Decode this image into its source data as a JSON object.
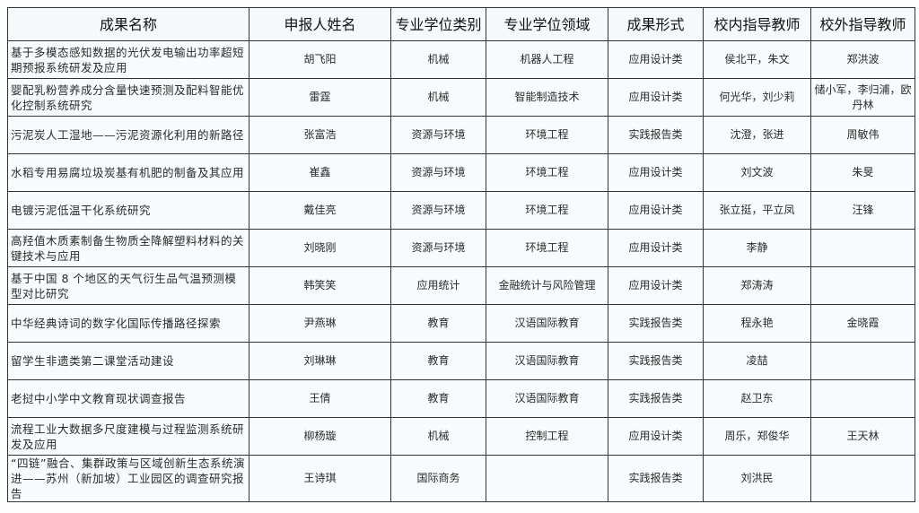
{
  "headers": [
    "成果名称",
    "申报人姓名",
    "专业学位类别",
    "专业学位领域",
    "成果形式",
    "校内指导教师",
    "校外指导教师"
  ],
  "rows": [
    [
      "基于多模态感知数据的光伏发电输出功率超短期预报系统研发及应用",
      "胡飞阳",
      "机械",
      "机器人工程",
      "应用设计类",
      "侯北平，朱文",
      "郑洪波"
    ],
    [
      "婴配乳粉营养成分含量快速预测及配料智能优化控制系统研究",
      "雷霆",
      "机械",
      "智能制造技术",
      "应用设计类",
      "何光华，刘少莉",
      "储小军，李归浦，欧丹林"
    ],
    [
      "污泥炭人工湿地——污泥资源化利用的新路径",
      "张富浩",
      "资源与环境",
      "环境工程",
      "实践报告类",
      "沈澄，张进",
      "周敏伟"
    ],
    [
      "水稻专用易腐垃圾炭基有机肥的制备及其应用",
      "崔鑫",
      "资源与环境",
      "环境工程",
      "应用设计类",
      "刘文波",
      "朱旻"
    ],
    [
      "电镀污泥低温干化系统研究",
      "戴佳亮",
      "资源与环境",
      "环境工程",
      "应用设计类",
      "张立挺，平立凤",
      "汪锋"
    ],
    [
      "高羟值木质素制备生物质全降解塑料材料的关键技术与应用",
      "刘晓刚",
      "资源与环境",
      "环境工程",
      "应用设计类",
      "李静",
      ""
    ],
    [
      "基于中国 8 个地区的天气衍生品气温预测模型对比研究",
      "韩笑笑",
      "应用统计",
      "金融统计与风险管理",
      "应用设计类",
      "郑涛涛",
      ""
    ],
    [
      "中华经典诗词的数字化国际传播路径探索",
      "尹燕琳",
      "教育",
      "汉语国际教育",
      "实践报告类",
      "程永艳",
      "金晓霞"
    ],
    [
      "留学生非遗类第二课堂活动建设",
      "刘琳琳",
      "教育",
      "汉语国际教育",
      "实践报告类",
      "凌喆",
      ""
    ],
    [
      "老挝中小学中文教育现状调查报告",
      "王倩",
      "教育",
      "汉语国际教育",
      "实践报告类",
      "赵卫东",
      ""
    ],
    [
      "流程工业大数据多尺度建模与过程监测系统研发及应用",
      "柳杨璇",
      "机械",
      "控制工程",
      "应用设计类",
      "周乐，郑俊华",
      "王天林"
    ],
    [
      "“四链”融合、集群政策与区域创新生态系统演进——苏州（新加坡）工业园区的调查研究报告",
      "王诗琪",
      "国际商务",
      "",
      "实践报告类",
      "刘洪民",
      ""
    ]
  ]
}
